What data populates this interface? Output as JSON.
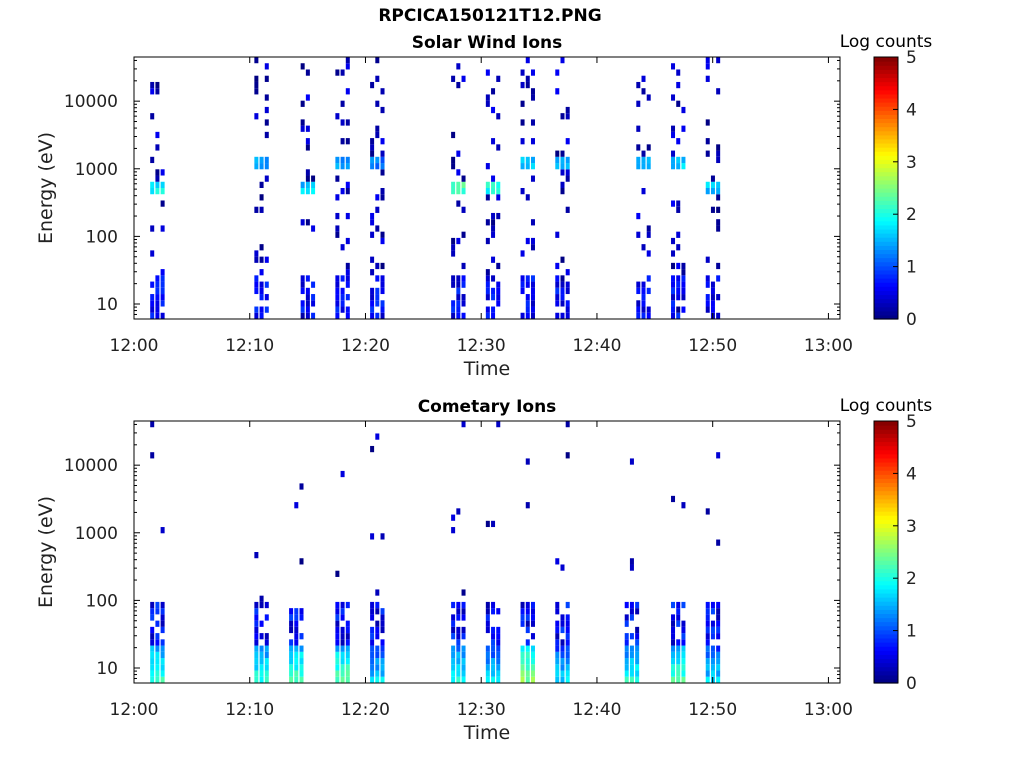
{
  "figure": {
    "title": "RPCICA150121T12.PNG"
  },
  "chart_data": [
    {
      "type": "heatmap",
      "title": "Solar Wind Ions",
      "xlabel": "Time",
      "ylabel": "Energy (eV)",
      "x_ticks": [
        "12:00",
        "12:10",
        "12:20",
        "12:30",
        "12:40",
        "12:50",
        "13:00"
      ],
      "y_scale": "log",
      "ylim": [
        6,
        45000
      ],
      "y_ticks": [
        10,
        100,
        1000,
        10000
      ],
      "y_tick_labels": [
        "10",
        "100",
        "1000",
        "10000"
      ],
      "colorbar": {
        "label": "Log counts",
        "range": [
          0,
          5
        ],
        "ticks": [
          "0",
          "1",
          "2",
          "3",
          "4",
          "5"
        ]
      },
      "bursts": [
        {
          "t": "12:02",
          "peak_energy_eV": 500,
          "peak_log_counts": 2.2
        },
        {
          "t": "12:11",
          "peak_energy_eV": 1200,
          "peak_log_counts": 1.8
        },
        {
          "t": "12:15",
          "peak_energy_eV": 500,
          "peak_log_counts": 2.0
        },
        {
          "t": "12:18",
          "peak_energy_eV": 1200,
          "peak_log_counts": 1.8
        },
        {
          "t": "12:21",
          "peak_energy_eV": 1200,
          "peak_log_counts": 1.6
        },
        {
          "t": "12:28",
          "peak_energy_eV": 550,
          "peak_log_counts": 2.6
        },
        {
          "t": "12:31",
          "peak_energy_eV": 550,
          "peak_log_counts": 2.4
        },
        {
          "t": "12:34",
          "peak_energy_eV": 1200,
          "peak_log_counts": 2.0
        },
        {
          "t": "12:37",
          "peak_energy_eV": 1200,
          "peak_log_counts": 1.8
        },
        {
          "t": "12:44",
          "peak_energy_eV": 1200,
          "peak_log_counts": 2.0
        },
        {
          "t": "12:47",
          "peak_energy_eV": 1200,
          "peak_log_counts": 2.0
        },
        {
          "t": "12:50",
          "peak_energy_eV": 550,
          "peak_log_counts": 2.0
        }
      ]
    },
    {
      "type": "heatmap",
      "title": "Cometary Ions",
      "xlabel": "Time",
      "ylabel": "Energy (eV)",
      "x_ticks": [
        "12:00",
        "12:10",
        "12:20",
        "12:30",
        "12:40",
        "12:50",
        "13:00"
      ],
      "y_scale": "log",
      "ylim": [
        6,
        45000
      ],
      "y_ticks": [
        10,
        100,
        1000,
        10000
      ],
      "y_tick_labels": [
        "10",
        "100",
        "1000",
        "10000"
      ],
      "colorbar": {
        "label": "Log counts",
        "range": [
          0,
          5
        ],
        "ticks": [
          "0",
          "1",
          "2",
          "3",
          "4",
          "5"
        ]
      },
      "bursts": [
        {
          "t": "12:02",
          "peak_energy_eV": 15,
          "peak_log_counts": 2.5
        },
        {
          "t": "12:11",
          "peak_energy_eV": 12,
          "peak_log_counts": 2.3
        },
        {
          "t": "12:14",
          "peak_energy_eV": 15,
          "peak_log_counts": 2.6
        },
        {
          "t": "12:18",
          "peak_energy_eV": 15,
          "peak_log_counts": 2.6
        },
        {
          "t": "12:21",
          "peak_energy_eV": 15,
          "peak_log_counts": 2.0
        },
        {
          "t": "12:28",
          "peak_energy_eV": 15,
          "peak_log_counts": 2.3
        },
        {
          "t": "12:31",
          "peak_energy_eV": 15,
          "peak_log_counts": 2.0
        },
        {
          "t": "12:34",
          "peak_energy_eV": 15,
          "peak_log_counts": 2.8
        },
        {
          "t": "12:37",
          "peak_energy_eV": 15,
          "peak_log_counts": 2.0
        },
        {
          "t": "12:43",
          "peak_energy_eV": 15,
          "peak_log_counts": 2.3
        },
        {
          "t": "12:47",
          "peak_energy_eV": 15,
          "peak_log_counts": 2.5
        },
        {
          "t": "12:50",
          "peak_energy_eV": 15,
          "peak_log_counts": 2.0
        }
      ]
    }
  ]
}
